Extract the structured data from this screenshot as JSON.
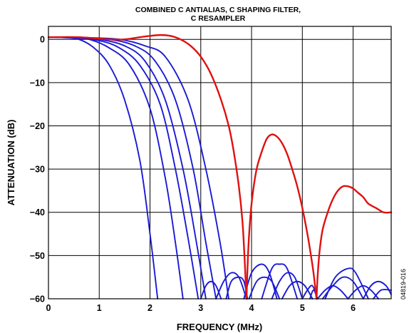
{
  "figure_id": "04819-016",
  "chart_data": {
    "type": "line",
    "title": "COMBINED C ANTIALIAS, C SHAPING FILTER,",
    "subtitle": "C RESAMPLER",
    "xlabel": "FREQUENCY (MHz)",
    "ylabel": "ATTENUATION (dB)",
    "xlim": [
      0,
      6.75
    ],
    "ylim": [
      -60,
      3
    ],
    "xticks": [
      0,
      1,
      2,
      3,
      4,
      5,
      6
    ],
    "yticks": [
      0,
      -10,
      -20,
      -30,
      -40,
      -50,
      -60
    ],
    "xtick_labels": [
      "0",
      "1",
      "2",
      "3",
      "4",
      "5",
      "6"
    ],
    "ytick_labels": [
      "0",
      "−10",
      "−20",
      "−30",
      "−40",
      "−50",
      "−60"
    ],
    "grid": true,
    "colors": {
      "blue": "#1a1ad6",
      "red": "#e01010"
    },
    "series": [
      {
        "color": "blue",
        "x": [
          0,
          0.3,
          0.6,
          0.9,
          1.2,
          1.5,
          1.8,
          2.0,
          2.15
        ],
        "y": [
          0.5,
          0.4,
          0,
          -2,
          -6,
          -14,
          -28,
          -45,
          -60
        ]
      },
      {
        "color": "blue",
        "x": [
          0,
          0.4,
          0.8,
          1.2,
          1.6,
          2.0,
          2.3,
          2.5,
          2.65
        ],
        "y": [
          0.5,
          0.4,
          0,
          -2,
          -6,
          -16,
          -32,
          -47,
          -60
        ]
      },
      {
        "color": "blue",
        "x": [
          0,
          0.5,
          1.0,
          1.4,
          1.8,
          2.2,
          2.5,
          2.75,
          2.95
        ],
        "y": [
          0.5,
          0.4,
          -0.3,
          -2,
          -6,
          -15,
          -30,
          -46,
          -60
        ]
      },
      {
        "color": "blue",
        "x": [
          0,
          0.5,
          1.0,
          1.5,
          1.9,
          2.3,
          2.65,
          2.9,
          3.1
        ],
        "y": [
          0.5,
          0.4,
          0,
          -1.5,
          -5,
          -14,
          -30,
          -46,
          -60
        ]
      },
      {
        "color": "blue",
        "x": [
          0,
          0.6,
          1.2,
          1.7,
          2.1,
          2.5,
          2.85,
          3.1,
          3.3
        ],
        "y": [
          0.5,
          0.4,
          0,
          -1.5,
          -5,
          -14,
          -30,
          -47,
          -60
        ]
      },
      {
        "color": "blue",
        "x": [
          0,
          0.7,
          1.4,
          1.9,
          2.3,
          2.75,
          3.1,
          3.38,
          3.55
        ],
        "y": [
          0.5,
          0.4,
          0,
          -1.5,
          -4,
          -14,
          -30,
          -47,
          -60
        ]
      },
      {
        "color": "blue",
        "x": [
          3.0,
          3.1,
          3.2,
          3.3,
          3.4
        ],
        "y": [
          -60,
          -57,
          -56,
          -57,
          -60
        ]
      },
      {
        "color": "blue",
        "x": [
          3.3,
          3.45,
          3.6,
          3.75,
          3.9
        ],
        "y": [
          -60,
          -56,
          -54,
          -55,
          -60
        ]
      },
      {
        "color": "blue",
        "x": [
          3.5,
          3.6,
          3.75,
          3.85,
          3.92
        ],
        "y": [
          -60,
          -56,
          -55,
          -56,
          -60
        ]
      },
      {
        "color": "blue",
        "x": [
          3.85,
          4.0,
          4.2,
          4.35,
          4.5
        ],
        "y": [
          -60,
          -54,
          -52,
          -54,
          -60
        ]
      },
      {
        "color": "blue",
        "x": [
          3.95,
          4.1,
          4.25,
          4.4,
          4.55
        ],
        "y": [
          -60,
          -56,
          -55,
          -56,
          -60
        ]
      },
      {
        "color": "blue",
        "x": [
          4.2,
          4.4,
          4.55,
          4.7,
          4.9
        ],
        "y": [
          -60,
          -53,
          -52,
          -53,
          -60
        ]
      },
      {
        "color": "blue",
        "x": [
          4.4,
          4.55,
          4.7,
          4.85,
          5.0
        ],
        "y": [
          -60,
          -56,
          -54,
          -55,
          -60
        ]
      },
      {
        "color": "blue",
        "x": [
          4.6,
          4.75,
          4.9,
          5.05,
          5.2
        ],
        "y": [
          -60,
          -57,
          -56,
          -57,
          -60
        ]
      },
      {
        "color": "blue",
        "x": [
          5.0,
          5.1,
          5.2,
          5.3
        ],
        "y": [
          -60,
          -58,
          -57,
          -60
        ]
      },
      {
        "color": "blue",
        "x": [
          5.15,
          5.22,
          5.3
        ],
        "y": [
          -60,
          -58,
          -60
        ]
      },
      {
        "color": "blue",
        "x": [
          5.3,
          5.45,
          5.6,
          5.75,
          5.9
        ],
        "y": [
          -60,
          -58,
          -57,
          -58,
          -60
        ]
      },
      {
        "color": "blue",
        "x": [
          5.4,
          5.6,
          5.8,
          6.0,
          6.2
        ],
        "y": [
          -60,
          -57,
          -55,
          -56,
          -60
        ]
      },
      {
        "color": "blue",
        "x": [
          5.45,
          5.65,
          5.9,
          6.05,
          6.3
        ],
        "y": [
          -60,
          -55,
          -53,
          -54,
          -60
        ]
      },
      {
        "color": "blue",
        "x": [
          5.9,
          6.05,
          6.2,
          6.35,
          6.5
        ],
        "y": [
          -60,
          -58,
          -57,
          -58,
          -60
        ]
      },
      {
        "color": "blue",
        "x": [
          6.2,
          6.35,
          6.5,
          6.65,
          6.75
        ],
        "y": [
          -60,
          -57,
          -56,
          -57,
          -59
        ]
      },
      {
        "color": "blue",
        "x": [
          6.4,
          6.55,
          6.75
        ],
        "y": [
          -60,
          -58,
          -58
        ]
      },
      {
        "color": "red",
        "x": [
          0,
          0.6,
          1.2,
          1.5,
          1.8,
          2.0,
          2.2,
          2.4,
          2.6,
          2.8,
          3.0,
          3.2,
          3.4,
          3.55,
          3.65,
          3.75,
          3.82,
          3.86,
          3.88,
          3.9
        ],
        "y": [
          0.5,
          0.5,
          0,
          0,
          0.5,
          0.8,
          1,
          0.8,
          0,
          -1.5,
          -4,
          -8,
          -14,
          -20,
          -26,
          -34,
          -42,
          -50,
          -55,
          -60
        ]
      },
      {
        "color": "red",
        "x": [
          3.9,
          3.93,
          3.97,
          4.02,
          4.1,
          4.2,
          4.3,
          4.4,
          4.5,
          4.6,
          4.7,
          4.8,
          4.9,
          5.0,
          5.1,
          5.17,
          5.22,
          5.26,
          5.28
        ],
        "y": [
          -60,
          -50,
          -42,
          -36,
          -30,
          -26,
          -23,
          -22,
          -22.5,
          -24,
          -26.5,
          -30,
          -34,
          -39,
          -45,
          -50,
          -54,
          -58,
          -60
        ]
      },
      {
        "color": "red",
        "x": [
          5.28,
          5.3,
          5.34,
          5.4,
          5.5,
          5.6,
          5.7,
          5.8,
          5.9,
          6.0,
          6.1,
          6.2,
          6.3,
          6.45,
          6.6,
          6.75
        ],
        "y": [
          -60,
          -55,
          -49,
          -44,
          -40,
          -37,
          -35,
          -34,
          -34,
          -34.5,
          -35.5,
          -36.5,
          -38,
          -39,
          -40,
          -40
        ]
      }
    ]
  }
}
